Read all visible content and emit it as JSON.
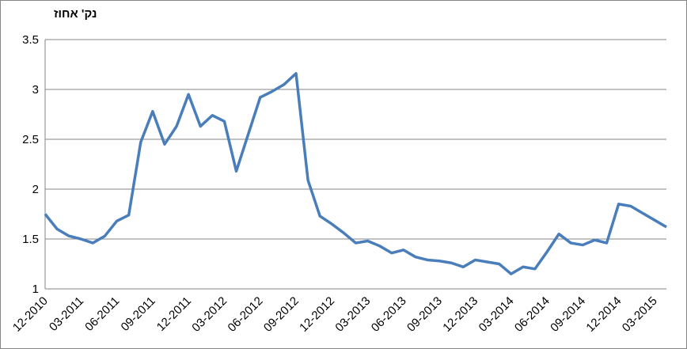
{
  "chart_data": {
    "type": "line",
    "y_label": "נק' אחוז",
    "categories": [
      "12-2010",
      null,
      null,
      "03-2011",
      null,
      null,
      "06-2011",
      null,
      null,
      "09-2011",
      null,
      null,
      "12-2011",
      null,
      null,
      "03-2012",
      null,
      null,
      "06-2012",
      null,
      null,
      "09-2012",
      null,
      null,
      "12-2012",
      null,
      null,
      "03-2013",
      null,
      null,
      "06-2013",
      null,
      null,
      "09-2013",
      null,
      null,
      "12-2013",
      null,
      null,
      "03-2014",
      null,
      null,
      "06-2014",
      null,
      null,
      "09-2014",
      null,
      null,
      "12-2014",
      null,
      null,
      "03-2015",
      null
    ],
    "values": [
      1.75,
      1.6,
      1.53,
      1.5,
      1.46,
      1.53,
      1.68,
      1.74,
      2.47,
      2.78,
      2.45,
      2.63,
      2.95,
      2.63,
      2.74,
      2.68,
      2.18,
      2.55,
      2.92,
      2.98,
      3.05,
      3.16,
      2.09,
      1.73,
      1.65,
      1.56,
      1.46,
      1.48,
      1.43,
      1.36,
      1.39,
      1.32,
      1.29,
      1.28,
      1.26,
      1.22,
      1.29,
      1.27,
      1.25,
      1.15,
      1.22,
      1.2,
      1.37,
      1.55,
      1.46,
      1.44,
      1.49,
      1.46,
      1.85,
      1.83,
      1.76,
      1.69,
      1.62
    ],
    "color": "#4a7ebb",
    "ylim": [
      1,
      3.5
    ],
    "yticks": [
      1,
      1.5,
      2,
      2.5,
      3,
      3.5
    ],
    "grid": true
  }
}
